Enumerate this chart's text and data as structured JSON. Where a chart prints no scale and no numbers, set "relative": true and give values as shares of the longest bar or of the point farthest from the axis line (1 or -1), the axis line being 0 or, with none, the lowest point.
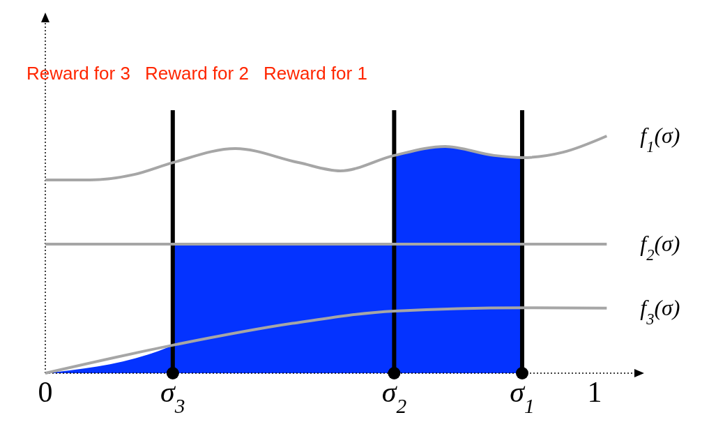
{
  "chart_data": {
    "type": "line",
    "relative": true,
    "xlim": [
      0,
      1.09
    ],
    "xticks": [
      0,
      1
    ],
    "series": [
      {
        "type": "area",
        "color": "#0433ff",
        "x": [
          0,
          0.232,
          0.232,
          0.635,
          0.635,
          0.728,
          0.817,
          0.868
        ],
        "values": [
          0,
          0.118,
          0.544,
          0.544,
          0.918,
          0.956,
          0.918,
          0.909
        ]
      },
      {
        "name": "f$_{1}$(σ)",
        "color": "#a6a6a6",
        "x": [
          0,
          0.081,
          0.162,
          0.232,
          0.346,
          0.461,
          0.537,
          0.635,
          0.728,
          0.817,
          0.868,
          0.943,
          1.022
        ],
        "values": [
          0.815,
          0.815,
          0.838,
          0.888,
          0.947,
          0.888,
          0.853,
          0.918,
          0.956,
          0.918,
          0.909,
          0.932,
          1
        ]
      },
      {
        "name": "f$_{2}$(σ)",
        "color": "#a6a6a6",
        "x": [
          0,
          1.022
        ],
        "values": [
          0.544,
          0.544
        ]
      },
      {
        "name": "f$_{3}$(σ)",
        "color": "#a6a6a6",
        "x": [
          0,
          0.232,
          0.45,
          0.635,
          0.868,
          1.022
        ],
        "values": [
          0,
          0.118,
          0.21,
          0.262,
          0.276,
          0.274
        ]
      },
      {
        "type": "scatter",
        "color": "#000000",
        "marker": "circle",
        "x": [
          0.232,
          0.635,
          0.868
        ],
        "values": [
          0,
          0,
          0
        ]
      }
    ],
    "ref_lines": [
      {
        "axis": "x",
        "value": 0.232,
        "color": "#000000",
        "label": "σ$_{3}$"
      },
      {
        "axis": "x",
        "value": 0.635,
        "color": "#000000",
        "label": "σ$_{2}$"
      },
      {
        "axis": "x",
        "value": 0.868,
        "color": "#000000",
        "label": "σ$_{1}$"
      }
    ],
    "annotations": [
      "Reward for 3",
      "Reward for 2",
      "Reward for 1"
    ]
  }
}
